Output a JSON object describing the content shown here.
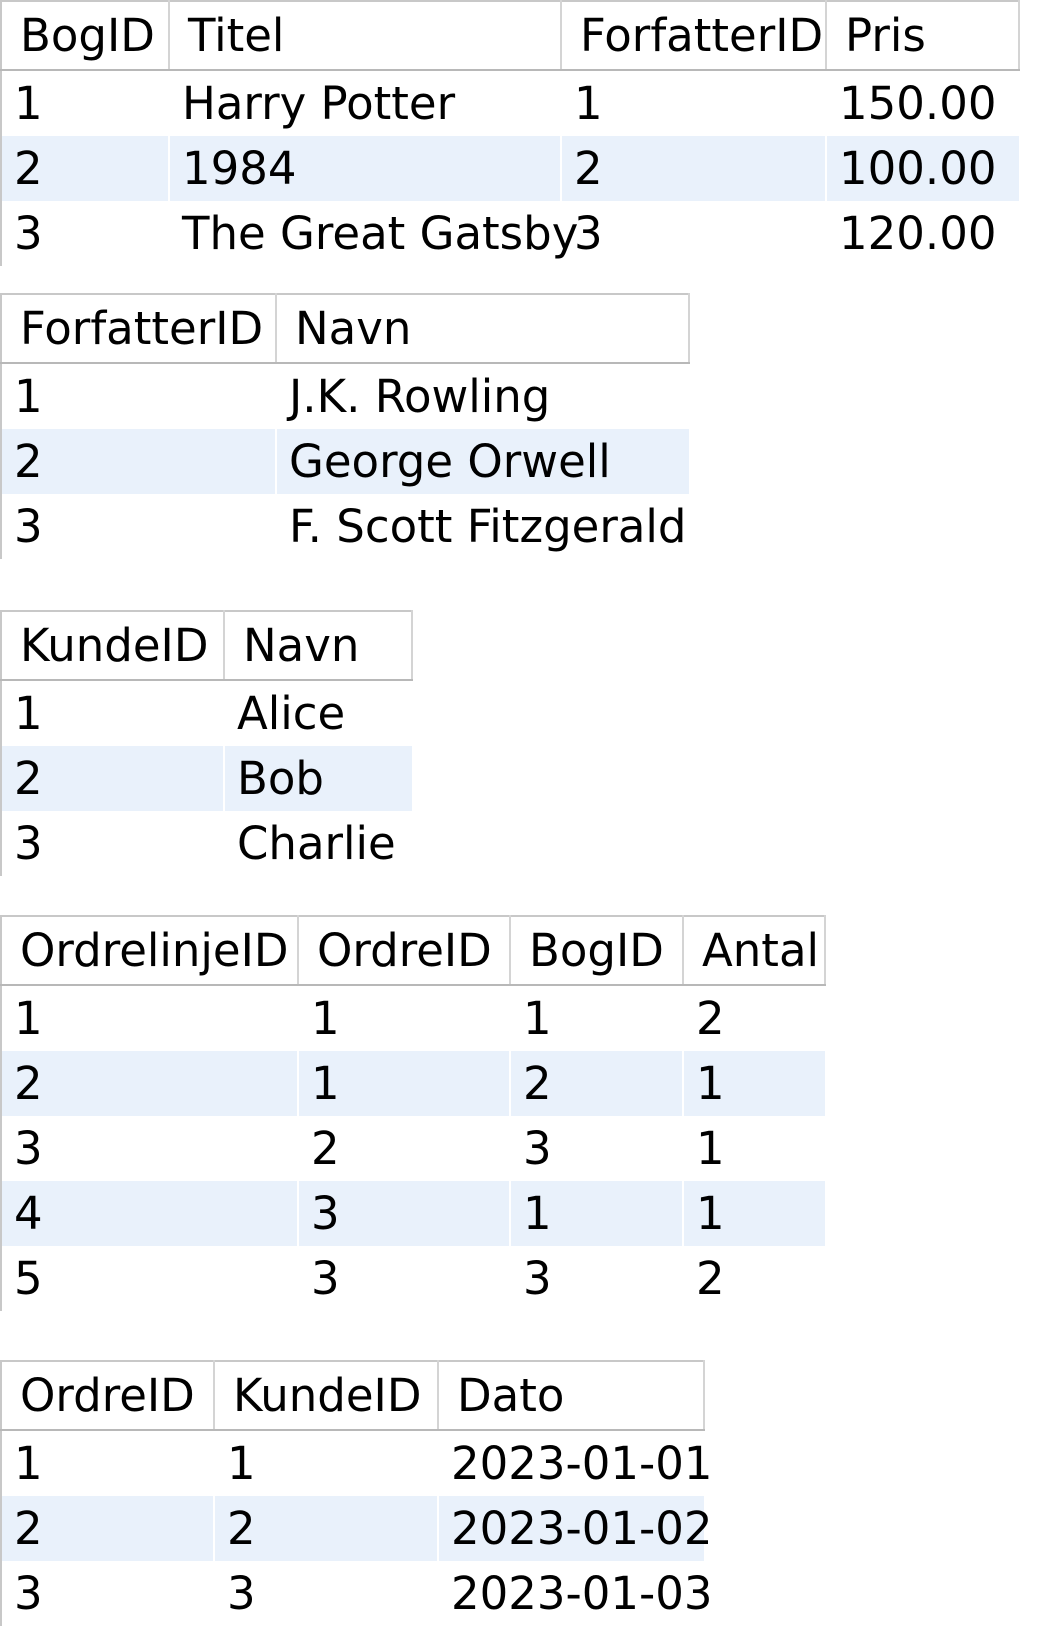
{
  "tables": {
    "bog": {
      "columns": [
        "BogID",
        "Titel",
        "ForfatterID",
        "Pris"
      ],
      "rows": [
        [
          "1",
          "Harry Potter",
          "1",
          "150.00"
        ],
        [
          "2",
          "1984",
          "2",
          "100.00"
        ],
        [
          "3",
          "The Great Gatsby",
          "3",
          "120.00"
        ]
      ]
    },
    "forfatter": {
      "columns": [
        "ForfatterID",
        "Navn"
      ],
      "rows": [
        [
          "1",
          "J.K. Rowling"
        ],
        [
          "2",
          "George Orwell"
        ],
        [
          "3",
          "F. Scott Fitzgerald"
        ]
      ]
    },
    "kunde": {
      "columns": [
        "KundeID",
        "Navn"
      ],
      "rows": [
        [
          "1",
          "Alice"
        ],
        [
          "2",
          "Bob"
        ],
        [
          "3",
          "Charlie"
        ]
      ]
    },
    "ordrelinje": {
      "columns": [
        "OrdrelinjeID",
        "OrdreID",
        "BogID",
        "Antal"
      ],
      "rows": [
        [
          "1",
          "1",
          "1",
          "2"
        ],
        [
          "2",
          "1",
          "2",
          "1"
        ],
        [
          "3",
          "2",
          "3",
          "1"
        ],
        [
          "4",
          "3",
          "1",
          "1"
        ],
        [
          "5",
          "3",
          "3",
          "2"
        ]
      ]
    },
    "ordre": {
      "columns": [
        "OrdreID",
        "KundeID",
        "Dato"
      ],
      "rows": [
        [
          "1",
          "1",
          "2023-01-01"
        ],
        [
          "2",
          "2",
          "2023-01-02"
        ],
        [
          "3",
          "3",
          "2023-01-03"
        ]
      ]
    }
  },
  "colors": {
    "alt_row": "#e9f1fb",
    "header_border": "#b8b8b8",
    "grid_line": "#d4d4d4"
  }
}
